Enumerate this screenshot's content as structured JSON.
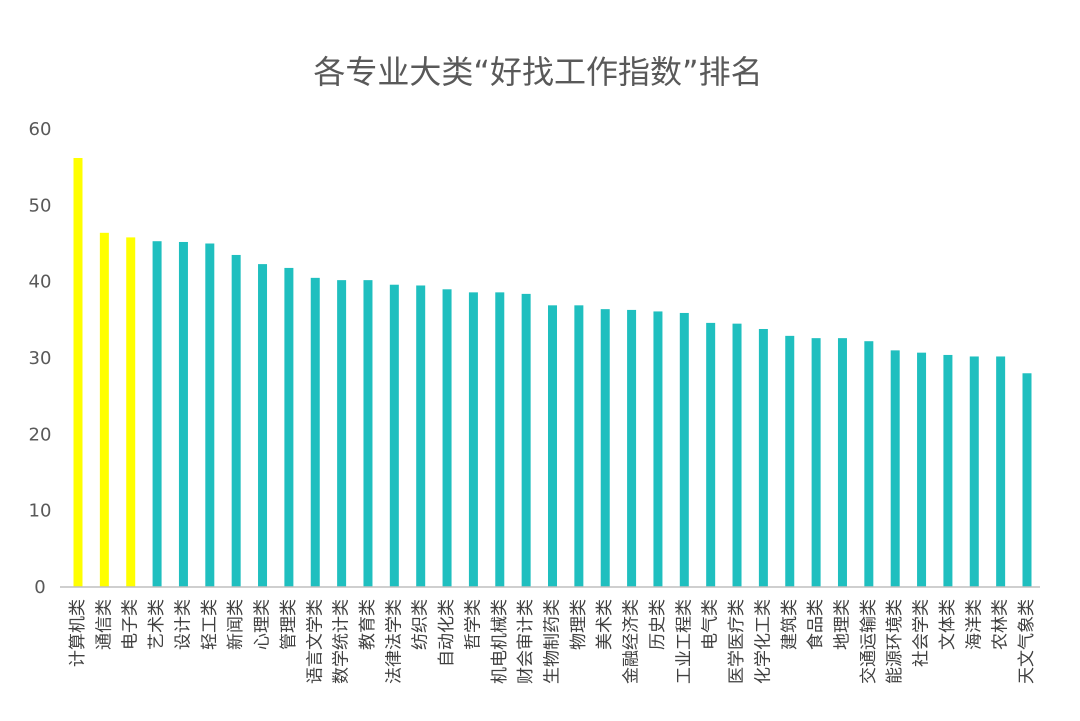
{
  "chart_data": {
    "type": "bar",
    "title": "各专业大类“好找工作指数”排名",
    "xlabel": "",
    "ylabel": "",
    "ylim": [
      0,
      60
    ],
    "yticks": [
      0,
      10,
      20,
      30,
      40,
      50,
      60
    ],
    "grid": false,
    "legend": "none",
    "categories": [
      "计算机类",
      "通信类",
      "电子类",
      "艺术类",
      "设计类",
      "轻工类",
      "新闻类",
      "心理类",
      "管理类",
      "语言文学类",
      "数学统计类",
      "教育类",
      "法律法学类",
      "纺织类",
      "自动化类",
      "哲学类",
      "机电机械类",
      "财会审计类",
      "生物制药类",
      "物理类",
      "美术类",
      "金融经济类",
      "历史类",
      "工业工程类",
      "电气类",
      "医学医疗类",
      "化学化工类",
      "建筑类",
      "食品类",
      "地理类",
      "交通运输类",
      "能源环境类",
      "社会学类",
      "文体类",
      "海洋类",
      "农林类",
      "天文气象类"
    ],
    "values": [
      56.2,
      46.4,
      45.8,
      45.3,
      45.2,
      45.0,
      43.5,
      42.3,
      41.8,
      40.5,
      40.2,
      40.2,
      39.6,
      39.5,
      39.0,
      38.6,
      38.6,
      38.4,
      36.9,
      36.9,
      36.4,
      36.3,
      36.1,
      35.9,
      34.6,
      34.5,
      33.8,
      32.9,
      32.6,
      32.6,
      32.2,
      31.0,
      30.7,
      30.4,
      30.2,
      30.2,
      28.0
    ],
    "highlight_count": 3,
    "colors": {
      "highlight": "#FFFF00",
      "normal": "#1FBFBF",
      "axis": "#BFBFBF"
    }
  }
}
